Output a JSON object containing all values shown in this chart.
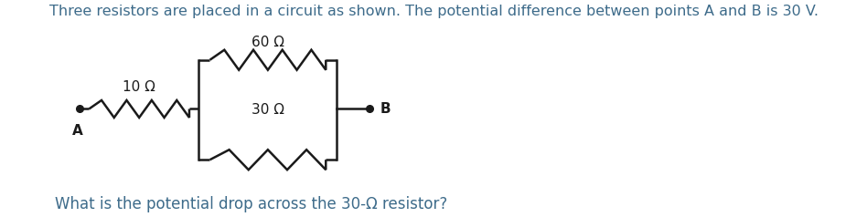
{
  "title": "Three resistors are placed in a circuit as shown. The potential difference between points A and B is 30 V.",
  "question": "What is the potential drop across the 30-Ω resistor?",
  "title_color": "#3d6b8a",
  "question_color": "#3d6b8a",
  "resistor_10_label": "10 Ω",
  "resistor_60_label": "60 Ω",
  "resistor_30_label": "30 Ω",
  "label_A": "A",
  "label_B": "B",
  "bg_color": "#ffffff",
  "wire_color": "#1a1a1a",
  "dot_color": "#1a1a1a",
  "line_width": 1.8,
  "title_fontsize": 11.5,
  "question_fontsize": 12,
  "circuit_label_fontsize": 11
}
